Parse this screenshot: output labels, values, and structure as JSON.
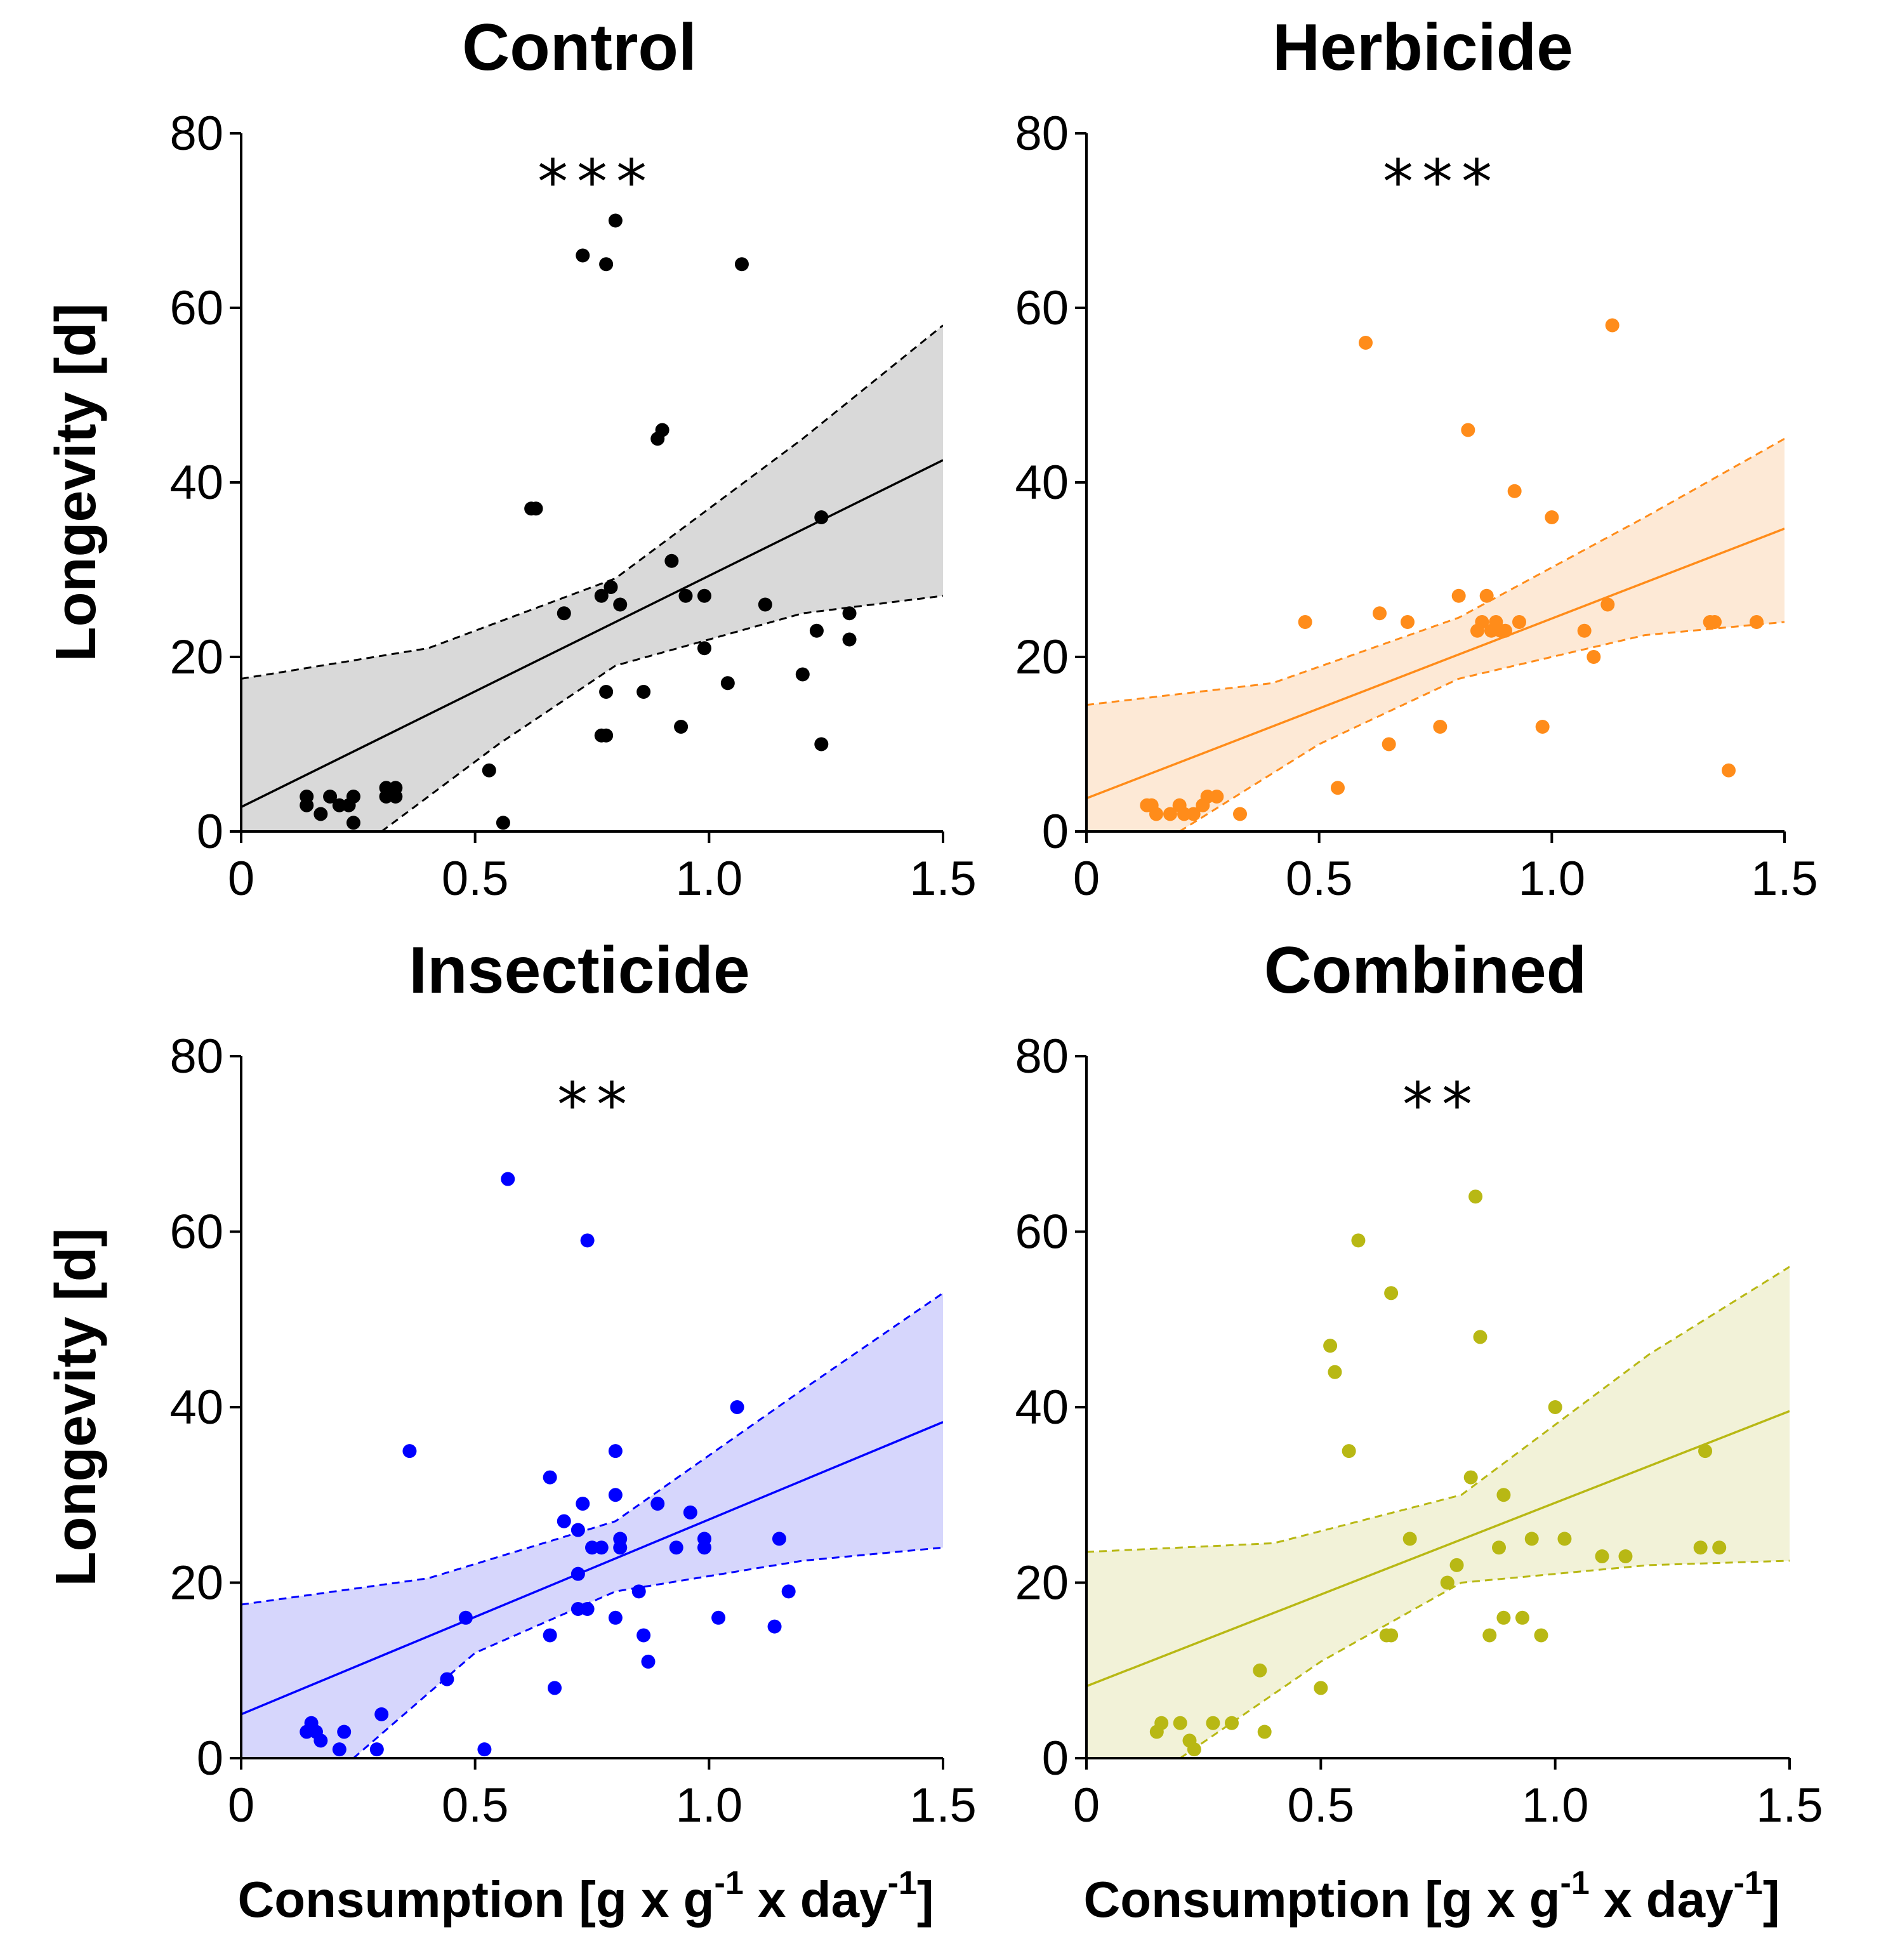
{
  "chart_data": [
    {
      "type": "scatter",
      "title": "Control",
      "significance": "***",
      "xlabel": "",
      "ylabel": "Longevity [d]",
      "xlim": [
        0,
        1.5
      ],
      "ylim": [
        0,
        80
      ],
      "xticks": [
        "0",
        "0.5",
        "1.0",
        "1.5"
      ],
      "yticks": [
        "0",
        "20",
        "40",
        "60",
        "80"
      ],
      "color": "#000000",
      "band_color": "#d9d9d9",
      "fit": {
        "intercept": 2.8,
        "slope": 26.5
      },
      "ci_upper": [
        [
          0,
          17.5
        ],
        [
          0.4,
          21
        ],
        [
          0.8,
          29
        ],
        [
          1.2,
          45
        ],
        [
          1.5,
          58
        ]
      ],
      "ci_lower": [
        [
          0.3,
          0
        ],
        [
          0.55,
          10
        ],
        [
          0.8,
          19
        ],
        [
          1.2,
          25
        ],
        [
          1.5,
          27
        ]
      ],
      "points": [
        [
          0.14,
          4
        ],
        [
          0.14,
          3
        ],
        [
          0.17,
          2
        ],
        [
          0.19,
          4
        ],
        [
          0.21,
          3
        ],
        [
          0.23,
          3
        ],
        [
          0.24,
          4
        ],
        [
          0.24,
          1
        ],
        [
          0.31,
          5
        ],
        [
          0.31,
          4
        ],
        [
          0.33,
          5
        ],
        [
          0.33,
          4
        ],
        [
          0.53,
          7
        ],
        [
          0.56,
          1
        ],
        [
          0.62,
          37
        ],
        [
          0.63,
          37
        ],
        [
          0.69,
          25
        ],
        [
          0.73,
          66
        ],
        [
          0.77,
          27
        ],
        [
          0.77,
          11
        ],
        [
          0.78,
          11
        ],
        [
          0.78,
          16
        ],
        [
          0.78,
          65
        ],
        [
          0.79,
          28
        ],
        [
          0.8,
          70
        ],
        [
          0.81,
          26
        ],
        [
          0.86,
          16
        ],
        [
          0.89,
          45
        ],
        [
          0.9,
          46
        ],
        [
          0.92,
          31
        ],
        [
          0.94,
          12
        ],
        [
          0.95,
          27
        ],
        [
          0.99,
          27
        ],
        [
          0.99,
          21
        ],
        [
          1.04,
          17
        ],
        [
          1.07,
          65
        ],
        [
          1.12,
          26
        ],
        [
          1.2,
          18
        ],
        [
          1.23,
          23
        ],
        [
          1.24,
          36
        ],
        [
          1.24,
          10
        ],
        [
          1.3,
          25
        ],
        [
          1.3,
          22
        ]
      ]
    },
    {
      "type": "scatter",
      "title": "Herbicide",
      "significance": "***",
      "xlabel": "",
      "ylabel": "",
      "xlim": [
        0,
        1.5
      ],
      "ylim": [
        0,
        80
      ],
      "xticks": [
        "0",
        "0.5",
        "1.0",
        "1.5"
      ],
      "yticks": [
        "0",
        "20",
        "40",
        "60",
        "80"
      ],
      "color": "#ff8c1a",
      "band_color": "#fde9d6",
      "fit": {
        "intercept": 3.8,
        "slope": 20.6
      },
      "ci_upper": [
        [
          0,
          14.5
        ],
        [
          0.4,
          17
        ],
        [
          0.8,
          24.5
        ],
        [
          1.2,
          36
        ],
        [
          1.5,
          45
        ]
      ],
      "ci_lower": [
        [
          0.2,
          0
        ],
        [
          0.5,
          10
        ],
        [
          0.8,
          17.5
        ],
        [
          1.2,
          22.5
        ],
        [
          1.5,
          24
        ]
      ],
      "points": [
        [
          0.13,
          3
        ],
        [
          0.14,
          3
        ],
        [
          0.15,
          2
        ],
        [
          0.18,
          2
        ],
        [
          0.2,
          3
        ],
        [
          0.21,
          2
        ],
        [
          0.23,
          2
        ],
        [
          0.25,
          3
        ],
        [
          0.26,
          4
        ],
        [
          0.28,
          4
        ],
        [
          0.33,
          2
        ],
        [
          0.47,
          24
        ],
        [
          0.54,
          5
        ],
        [
          0.6,
          56
        ],
        [
          0.63,
          25
        ],
        [
          0.65,
          10
        ],
        [
          0.69,
          24
        ],
        [
          0.76,
          12
        ],
        [
          0.8,
          27
        ],
        [
          0.82,
          46
        ],
        [
          0.84,
          23
        ],
        [
          0.85,
          24
        ],
        [
          0.86,
          27
        ],
        [
          0.87,
          23
        ],
        [
          0.88,
          24
        ],
        [
          0.89,
          23
        ],
        [
          0.9,
          23
        ],
        [
          0.92,
          39
        ],
        [
          0.93,
          24
        ],
        [
          0.98,
          12
        ],
        [
          1.0,
          36
        ],
        [
          1.07,
          23
        ],
        [
          1.09,
          20
        ],
        [
          1.12,
          26
        ],
        [
          1.13,
          58
        ],
        [
          1.34,
          24
        ],
        [
          1.35,
          24
        ],
        [
          1.38,
          7
        ],
        [
          1.44,
          24
        ]
      ]
    },
    {
      "type": "scatter",
      "title": "Insecticide",
      "significance": "**",
      "xlabel": "Consumption [g x g-1 x day-1]",
      "ylabel": "Longevity [d]",
      "xlim": [
        0,
        1.5
      ],
      "ylim": [
        0,
        80
      ],
      "xticks": [
        "0",
        "0.5",
        "1.0",
        "1.5"
      ],
      "yticks": [
        "0",
        "20",
        "40",
        "60",
        "80"
      ],
      "color": "#0000ff",
      "band_color": "#d6d6fc",
      "fit": {
        "intercept": 5,
        "slope": 22.2
      },
      "ci_upper": [
        [
          0,
          17.5
        ],
        [
          0.4,
          20.5
        ],
        [
          0.8,
          27
        ],
        [
          1.2,
          42
        ],
        [
          1.5,
          53
        ]
      ],
      "ci_lower": [
        [
          0.24,
          0
        ],
        [
          0.5,
          12
        ],
        [
          0.8,
          19
        ],
        [
          1.2,
          22.5
        ],
        [
          1.5,
          24
        ]
      ],
      "points": [
        [
          0.14,
          3
        ],
        [
          0.15,
          4
        ],
        [
          0.16,
          3
        ],
        [
          0.17,
          2
        ],
        [
          0.21,
          1
        ],
        [
          0.22,
          3
        ],
        [
          0.29,
          1
        ],
        [
          0.3,
          5
        ],
        [
          0.36,
          35
        ],
        [
          0.44,
          9
        ],
        [
          0.48,
          16
        ],
        [
          0.52,
          1
        ],
        [
          0.57,
          66
        ],
        [
          0.66,
          14
        ],
        [
          0.66,
          32
        ],
        [
          0.67,
          8
        ],
        [
          0.69,
          27
        ],
        [
          0.72,
          17
        ],
        [
          0.72,
          21
        ],
        [
          0.72,
          26
        ],
        [
          0.73,
          29
        ],
        [
          0.74,
          17
        ],
        [
          0.74,
          59
        ],
        [
          0.75,
          24
        ],
        [
          0.77,
          24
        ],
        [
          0.8,
          16
        ],
        [
          0.8,
          35
        ],
        [
          0.8,
          30
        ],
        [
          0.81,
          24
        ],
        [
          0.81,
          25
        ],
        [
          0.85,
          19
        ],
        [
          0.86,
          14
        ],
        [
          0.87,
          11
        ],
        [
          0.89,
          29
        ],
        [
          0.93,
          24
        ],
        [
          0.96,
          28
        ],
        [
          0.99,
          25
        ],
        [
          0.99,
          24
        ],
        [
          1.02,
          16
        ],
        [
          1.06,
          40
        ],
        [
          1.14,
          15
        ],
        [
          1.15,
          25
        ],
        [
          1.17,
          19
        ]
      ]
    },
    {
      "type": "scatter",
      "title": "Combined",
      "significance": "**",
      "xlabel": "Consumption [g x g-1 x day-1]",
      "ylabel": "",
      "xlim": [
        0,
        1.5
      ],
      "ylim": [
        0,
        80
      ],
      "xticks": [
        "0",
        "0.5",
        "1.0",
        "1.5"
      ],
      "yticks": [
        "0",
        "20",
        "40",
        "60",
        "80"
      ],
      "color": "#b8b814",
      "band_color": "#f2f2d8",
      "fit": {
        "intercept": 8.2,
        "slope": 20.9
      },
      "ci_upper": [
        [
          0,
          23.5
        ],
        [
          0.4,
          24.5
        ],
        [
          0.8,
          30
        ],
        [
          1.2,
          46
        ],
        [
          1.5,
          56
        ]
      ],
      "ci_lower": [
        [
          0.2,
          0
        ],
        [
          0.5,
          11
        ],
        [
          0.8,
          20
        ],
        [
          1.2,
          22
        ],
        [
          1.5,
          22.5
        ]
      ],
      "points": [
        [
          0.15,
          3
        ],
        [
          0.16,
          4
        ],
        [
          0.2,
          4
        ],
        [
          0.22,
          2
        ],
        [
          0.23,
          1
        ],
        [
          0.27,
          4
        ],
        [
          0.31,
          4
        ],
        [
          0.37,
          10
        ],
        [
          0.38,
          3
        ],
        [
          0.5,
          8
        ],
        [
          0.52,
          47
        ],
        [
          0.53,
          44
        ],
        [
          0.56,
          35
        ],
        [
          0.58,
          59
        ],
        [
          0.64,
          14
        ],
        [
          0.65,
          14
        ],
        [
          0.65,
          53
        ],
        [
          0.69,
          25
        ],
        [
          0.77,
          20
        ],
        [
          0.79,
          22
        ],
        [
          0.82,
          32
        ],
        [
          0.83,
          64
        ],
        [
          0.84,
          48
        ],
        [
          0.86,
          14
        ],
        [
          0.88,
          24
        ],
        [
          0.89,
          16
        ],
        [
          0.89,
          30
        ],
        [
          0.93,
          16
        ],
        [
          0.95,
          25
        ],
        [
          0.97,
          14
        ],
        [
          1.0,
          40
        ],
        [
          1.02,
          25
        ],
        [
          1.1,
          23
        ],
        [
          1.15,
          23
        ],
        [
          1.31,
          24
        ],
        [
          1.32,
          35
        ],
        [
          1.35,
          24
        ]
      ]
    }
  ]
}
